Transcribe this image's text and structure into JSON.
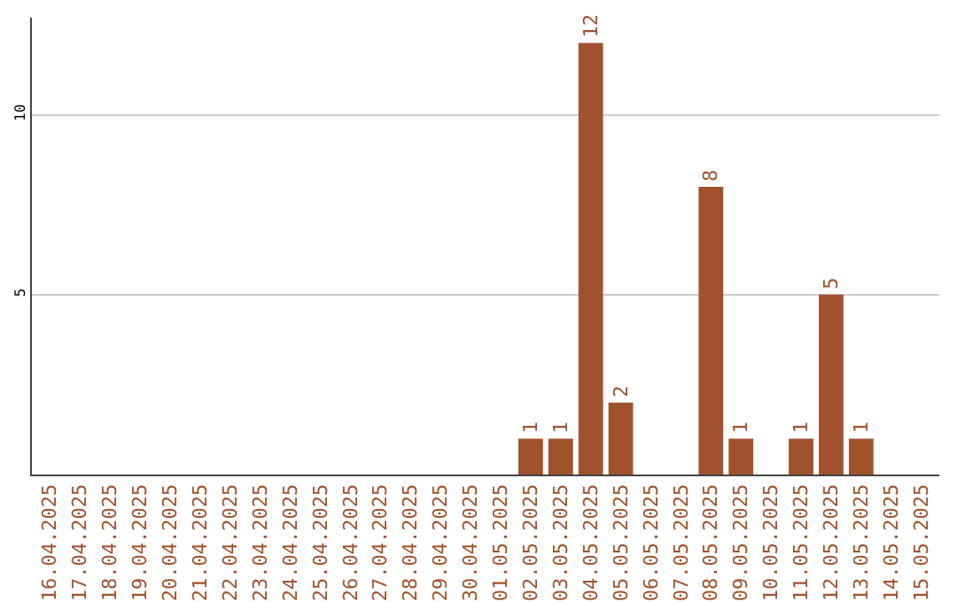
{
  "chart_data": {
    "type": "bar",
    "categories": [
      "16.04.2025",
      "17.04.2025",
      "18.04.2025",
      "19.04.2025",
      "20.04.2025",
      "21.04.2025",
      "22.04.2025",
      "23.04.2025",
      "24.04.2025",
      "25.04.2025",
      "26.04.2025",
      "27.04.2025",
      "28.04.2025",
      "29.04.2025",
      "30.04.2025",
      "01.05.2025",
      "02.05.2025",
      "03.05.2025",
      "04.05.2025",
      "05.05.2025",
      "06.05.2025",
      "07.05.2025",
      "08.05.2025",
      "09.05.2025",
      "10.05.2025",
      "11.05.2025",
      "12.05.2025",
      "13.05.2025",
      "14.05.2025",
      "15.05.2025"
    ],
    "values": [
      0,
      0,
      0,
      0,
      0,
      0,
      0,
      0,
      0,
      0,
      0,
      0,
      0,
      0,
      0,
      0,
      1,
      1,
      12,
      2,
      0,
      0,
      8,
      1,
      0,
      1,
      5,
      1,
      0,
      0
    ],
    "value_labels": [
      null,
      null,
      null,
      null,
      null,
      null,
      null,
      null,
      null,
      null,
      null,
      null,
      null,
      null,
      null,
      null,
      "1",
      "1",
      "12",
      "2",
      null,
      null,
      "8",
      "1",
      null,
      "1",
      "5",
      "1",
      null,
      null
    ],
    "color": "#a0522d",
    "ylim": [
      0,
      12.7
    ],
    "yticks": [
      5,
      10
    ],
    "grid": "y"
  }
}
